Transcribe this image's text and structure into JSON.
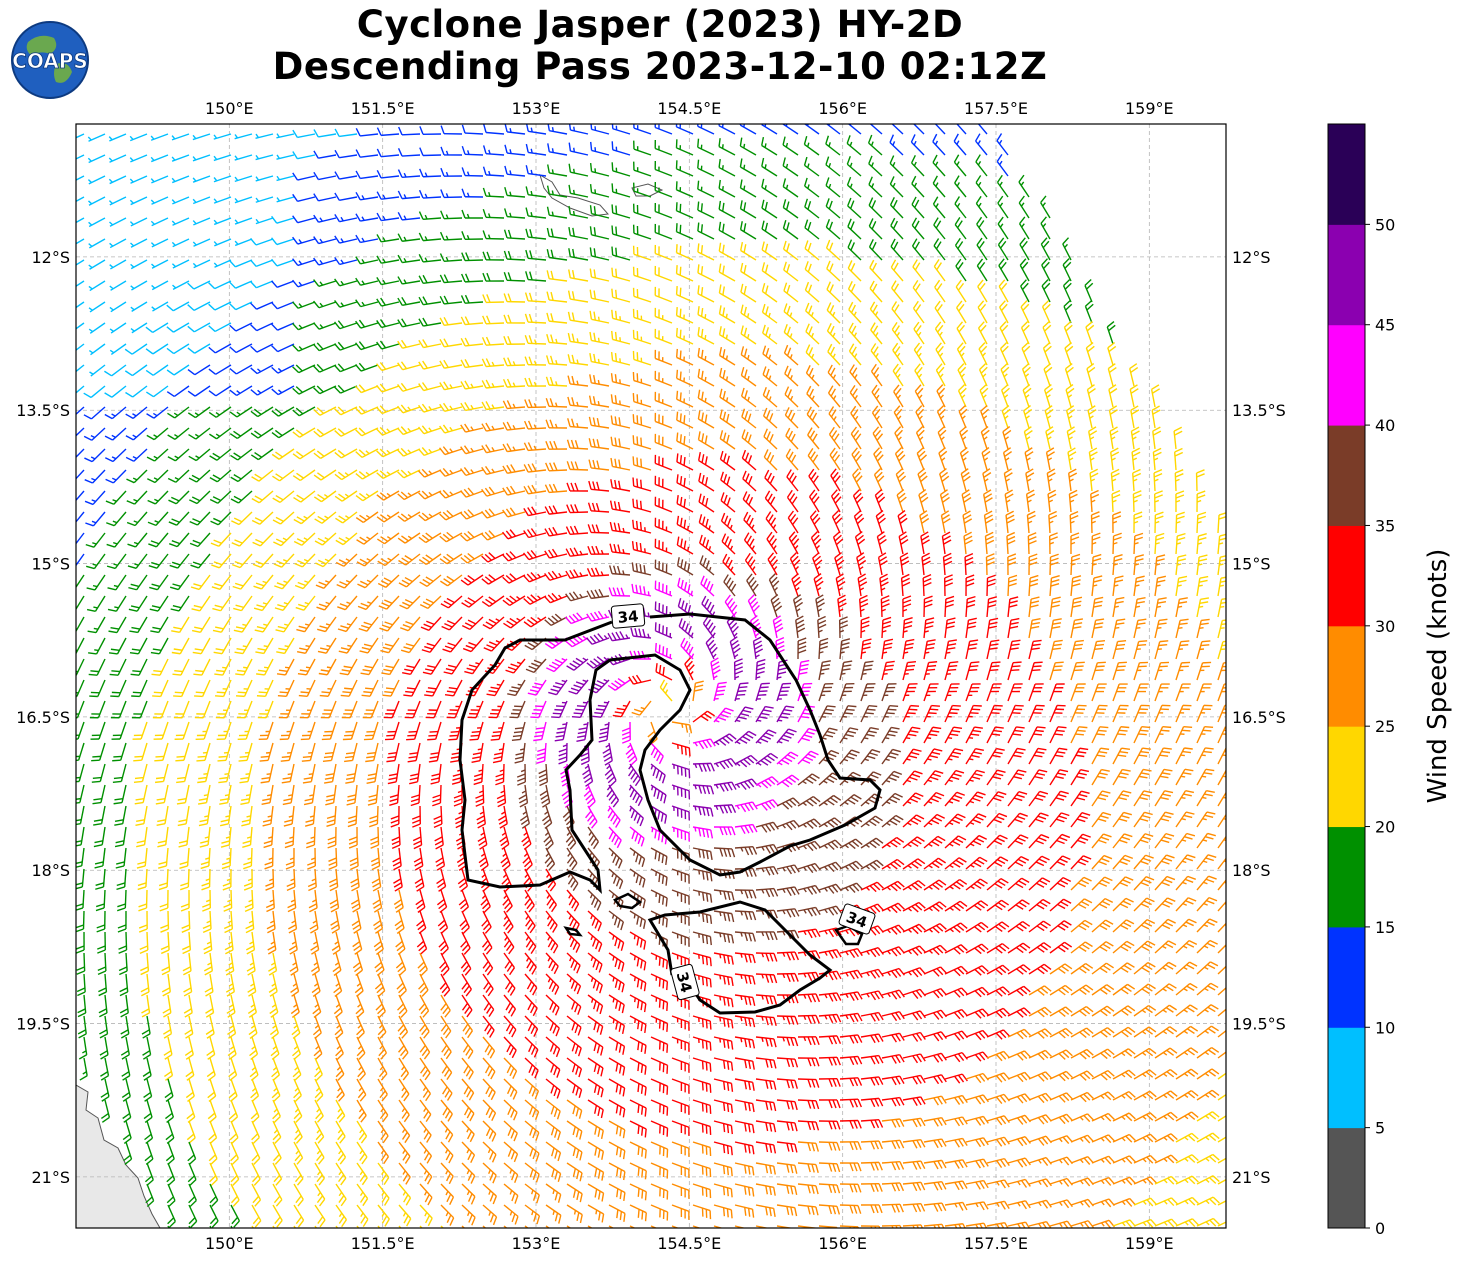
{
  "title": {
    "line1": "Cyclone Jasper (2023) HY-2D",
    "line2": "Descending Pass 2023-12-10 02:12Z"
  },
  "logo": {
    "text": "COAPS",
    "icon": "globe-icon"
  },
  "map": {
    "lon_range": [
      148.5,
      159.75
    ],
    "lat_range": [
      -21.5,
      -10.7
    ],
    "lon_ticks": [
      "150°E",
      "151.5°E",
      "153°E",
      "154.5°E",
      "156°E",
      "157.5°E",
      "159°E"
    ],
    "lat_ticks": [
      "12°S",
      "13.5°S",
      "15°S",
      "16.5°S",
      "18°S",
      "19.5°S",
      "21°S"
    ],
    "center": {
      "lon": 154.3,
      "lat": -16.4
    },
    "contour_value": "34",
    "contour_labels": [
      "34",
      "34",
      "34"
    ],
    "gridlines": true
  },
  "colorbar": {
    "title": "Wind Speed (knots)",
    "ticks": [
      "0",
      "5",
      "10",
      "15",
      "20",
      "25",
      "30",
      "35",
      "40",
      "45",
      "50"
    ],
    "colors": [
      "#555555",
      "#00bfff",
      "#0033ff",
      "#009000",
      "#ffd700",
      "#ff8c00",
      "#ff0000",
      "#7a3c28",
      "#ff00ff",
      "#8b00b0",
      "#2a0057"
    ]
  }
}
